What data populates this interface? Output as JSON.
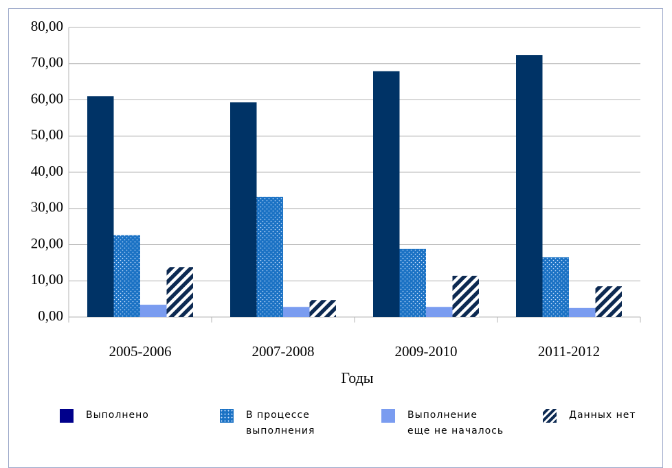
{
  "chart_data": {
    "type": "bar",
    "x_label": "Годы",
    "categories": [
      "2005-2006",
      "2007-2008",
      "2009-2010",
      "2011-2012"
    ],
    "series": [
      {
        "name": "Выполнено",
        "color": "#003366",
        "pattern": "solid",
        "values": [
          61.0,
          59.3,
          67.9,
          72.4
        ]
      },
      {
        "name": "В процессе\nвыполнения",
        "color": "#1b72c4",
        "pattern": "dots",
        "values": [
          22.6,
          33.2,
          18.8,
          16.5
        ]
      },
      {
        "name": "Выполнение\nеще не началось",
        "color": "#7a9cf0",
        "pattern": "solid",
        "values": [
          3.4,
          2.8,
          2.8,
          2.5
        ]
      },
      {
        "name": "Данных нет",
        "color": "#0d2a52",
        "pattern": "stripes",
        "values": [
          13.8,
          4.7,
          11.4,
          8.5
        ]
      }
    ],
    "ylim": [
      0,
      80
    ],
    "yticks": [
      {
        "value": 0,
        "label": "0,00"
      },
      {
        "value": 10,
        "label": "10,00"
      },
      {
        "value": 20,
        "label": "20,00"
      },
      {
        "value": 30,
        "label": "30,00"
      },
      {
        "value": 40,
        "label": "40,00"
      },
      {
        "value": 50,
        "label": "50,00"
      },
      {
        "value": 60,
        "label": "60,00"
      },
      {
        "value": 70,
        "label": "70,00"
      },
      {
        "value": 80,
        "label": "80,00"
      }
    ],
    "grid": true
  }
}
